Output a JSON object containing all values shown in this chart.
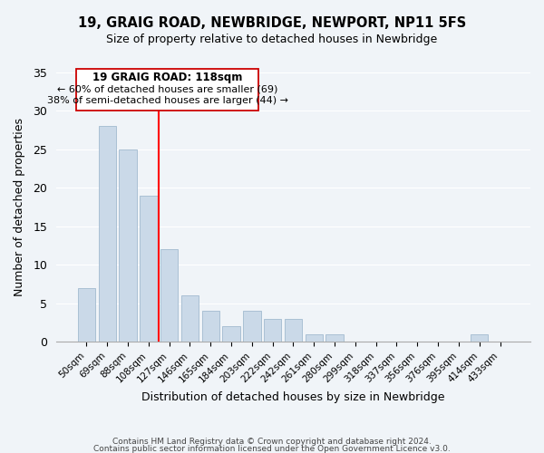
{
  "title": "19, GRAIG ROAD, NEWBRIDGE, NEWPORT, NP11 5FS",
  "subtitle": "Size of property relative to detached houses in Newbridge",
  "xlabel": "Distribution of detached houses by size in Newbridge",
  "ylabel": "Number of detached properties",
  "bar_labels": [
    "50sqm",
    "69sqm",
    "88sqm",
    "108sqm",
    "127sqm",
    "146sqm",
    "165sqm",
    "184sqm",
    "203sqm",
    "222sqm",
    "242sqm",
    "261sqm",
    "280sqm",
    "299sqm",
    "318sqm",
    "337sqm",
    "356sqm",
    "376sqm",
    "395sqm",
    "414sqm",
    "433sqm"
  ],
  "bar_heights": [
    7,
    28,
    25,
    19,
    12,
    6,
    4,
    2,
    4,
    3,
    3,
    1,
    1,
    0,
    0,
    0,
    0,
    0,
    0,
    1,
    0
  ],
  "bar_color": "#cad9e8",
  "bar_edge_color": "#aac0d4",
  "red_line_x": 3.5,
  "ylim": [
    0,
    35
  ],
  "yticks": [
    0,
    5,
    10,
    15,
    20,
    25,
    30,
    35
  ],
  "annotation_title": "19 GRAIG ROAD: 118sqm",
  "annotation_line1": "← 60% of detached houses are smaller (69)",
  "annotation_line2": "38% of semi-detached houses are larger (44) →",
  "footer_line1": "Contains HM Land Registry data © Crown copyright and database right 2024.",
  "footer_line2": "Contains public sector information licensed under the Open Government Licence v3.0.",
  "background_color": "#f0f4f8",
  "plot_bg_color": "#f0f4f8",
  "grid_color": "#ffffff"
}
